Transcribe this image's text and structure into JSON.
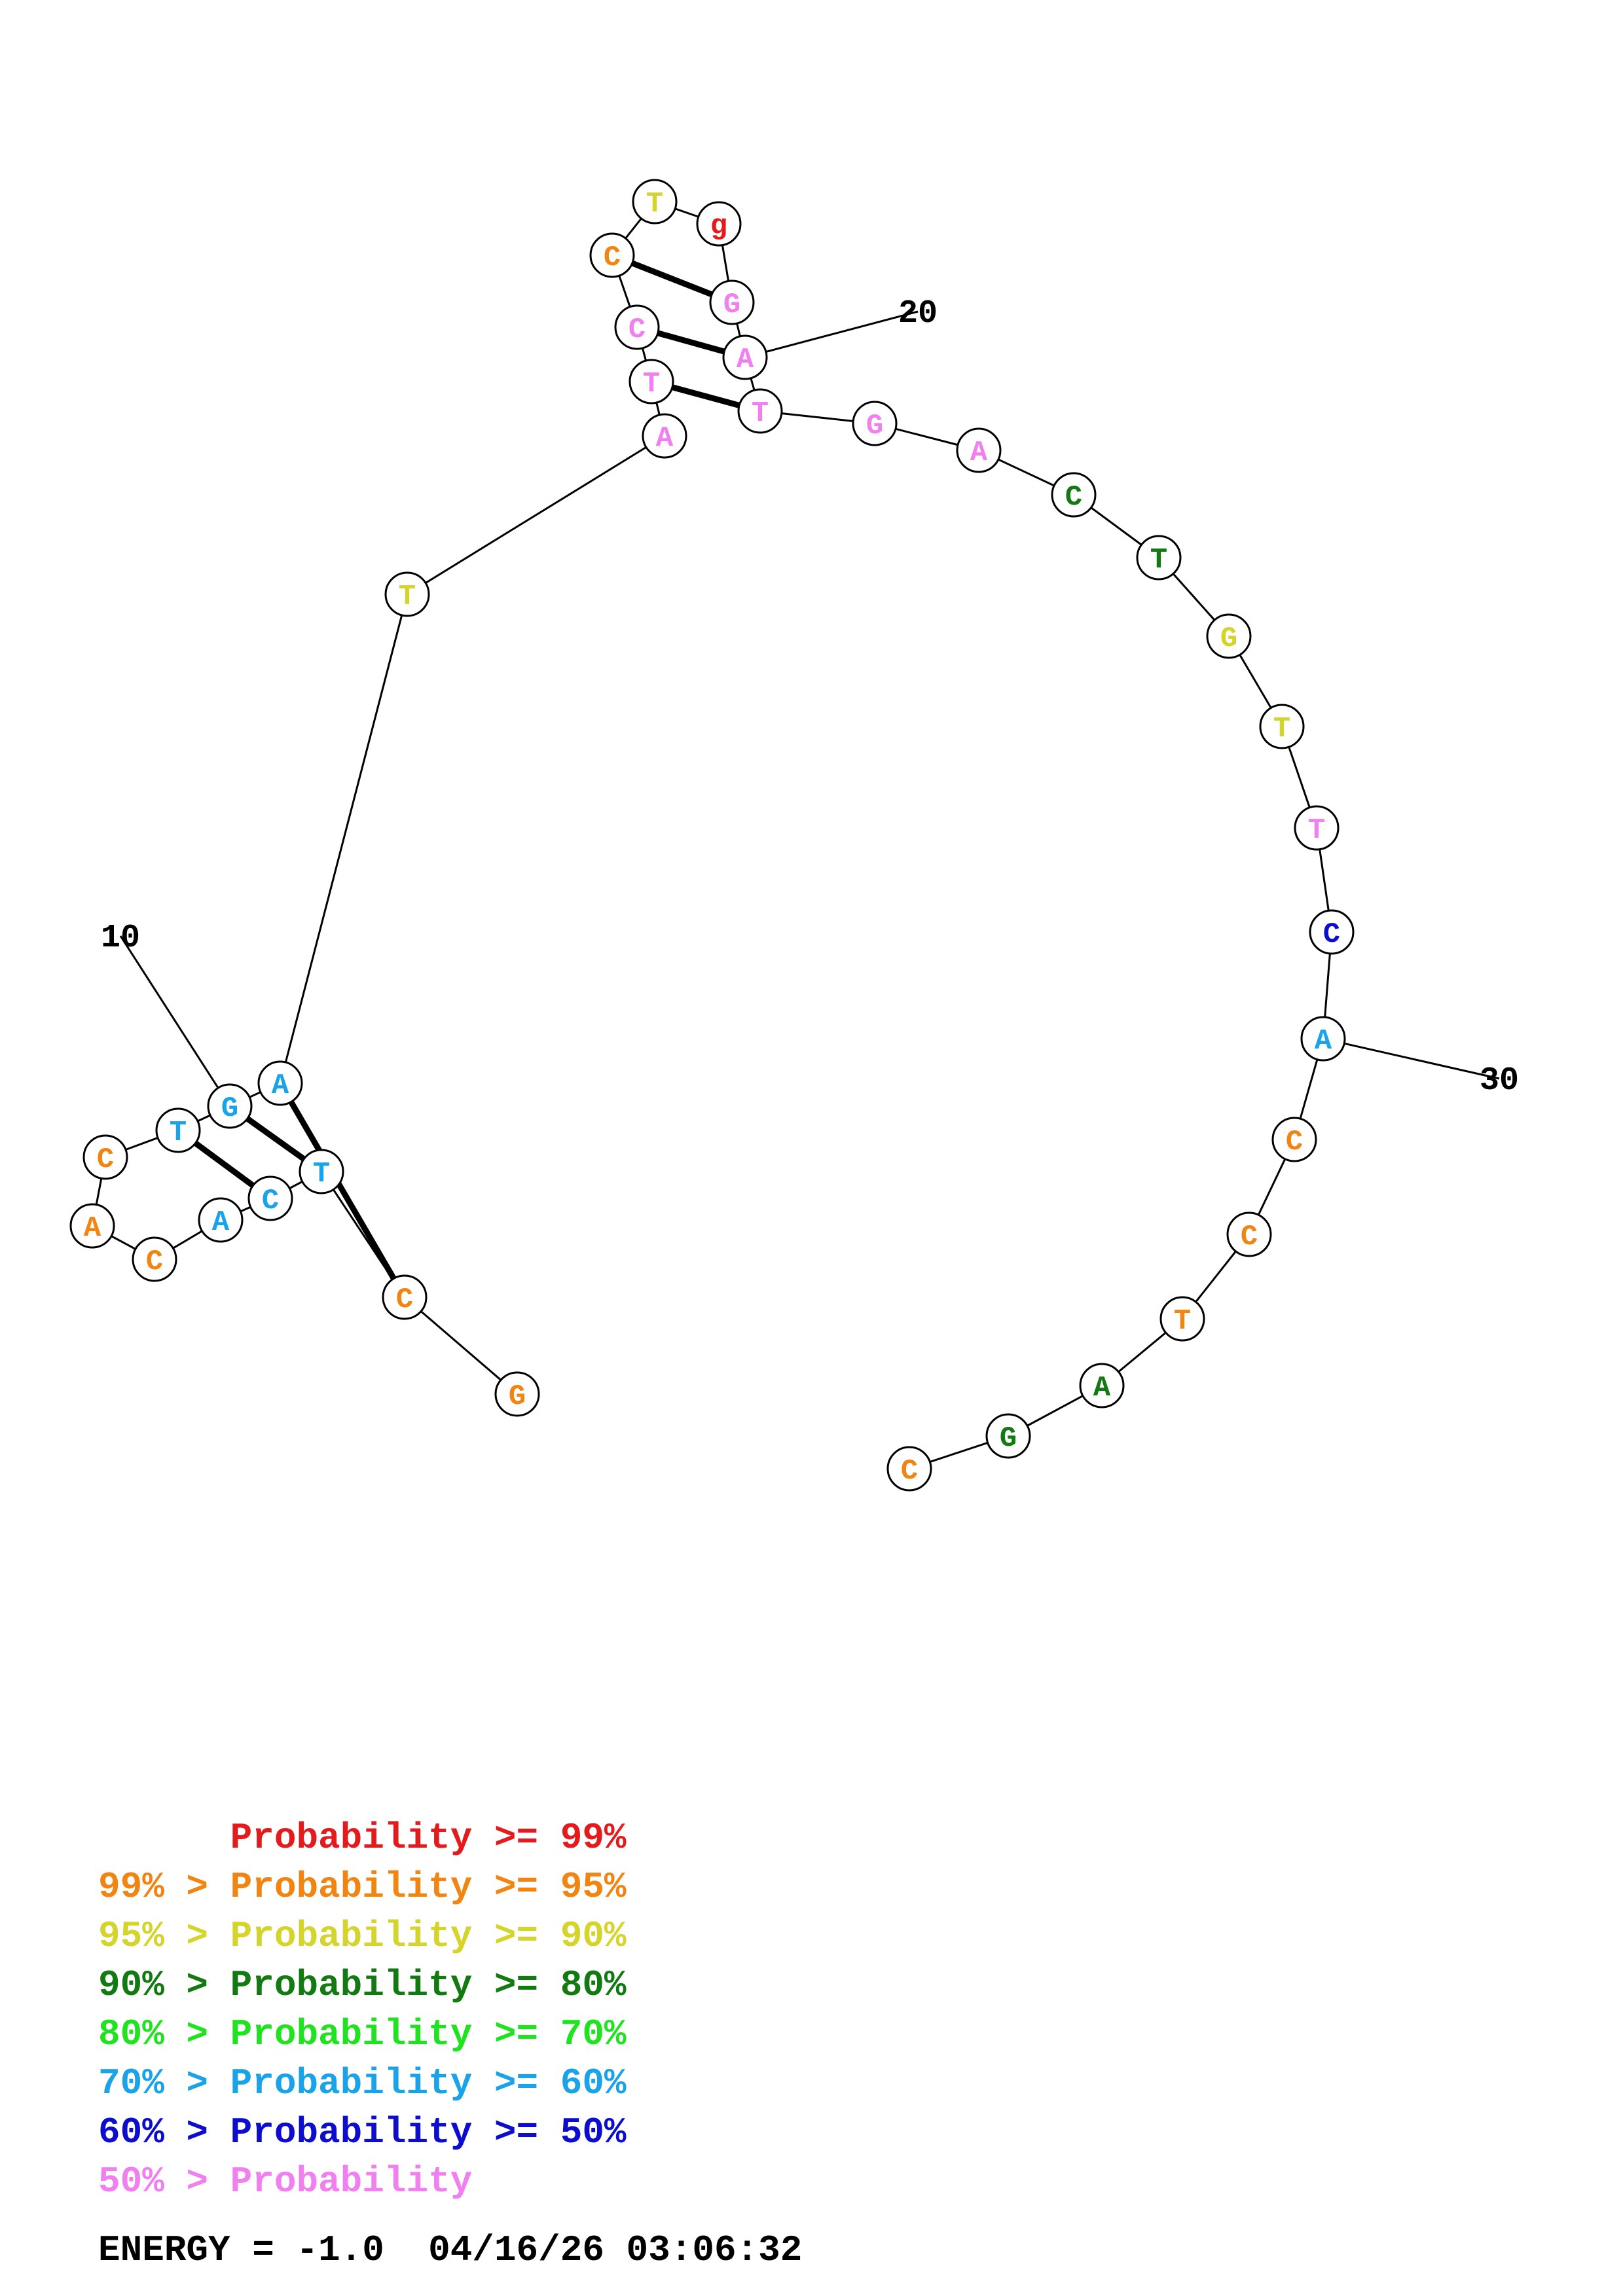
{
  "structure": {
    "nucleotides": [
      {
        "n": 1,
        "base": "G",
        "cls": "c95"
      },
      {
        "n": 2,
        "base": "C",
        "cls": "c95"
      },
      {
        "n": 3,
        "base": "T",
        "cls": "c60"
      },
      {
        "n": 4,
        "base": "C",
        "cls": "c60"
      },
      {
        "n": 5,
        "base": "A",
        "cls": "c60"
      },
      {
        "n": 6,
        "base": "C",
        "cls": "c95"
      },
      {
        "n": 7,
        "base": "A",
        "cls": "c95"
      },
      {
        "n": 8,
        "base": "C",
        "cls": "c95"
      },
      {
        "n": 9,
        "base": "T",
        "cls": "c60"
      },
      {
        "n": 10,
        "base": "G",
        "cls": "c60"
      },
      {
        "n": 11,
        "base": "A",
        "cls": "c60"
      },
      {
        "n": 12,
        "base": "T",
        "cls": "c90"
      },
      {
        "n": 13,
        "base": "A",
        "cls": "clow"
      },
      {
        "n": 14,
        "base": "T",
        "cls": "clow"
      },
      {
        "n": 15,
        "base": "C",
        "cls": "clow"
      },
      {
        "n": 16,
        "base": "C",
        "cls": "c95"
      },
      {
        "n": 17,
        "base": "T",
        "cls": "c90"
      },
      {
        "n": 18,
        "base": "g",
        "cls": "c99"
      },
      {
        "n": 19,
        "base": "G",
        "cls": "clow"
      },
      {
        "n": 20,
        "base": "A",
        "cls": "clow"
      },
      {
        "n": 21,
        "base": "T",
        "cls": "clow"
      },
      {
        "n": 22,
        "base": "G",
        "cls": "clow"
      },
      {
        "n": 23,
        "base": "A",
        "cls": "clow"
      },
      {
        "n": 24,
        "base": "C",
        "cls": "c80"
      },
      {
        "n": 25,
        "base": "T",
        "cls": "c80"
      },
      {
        "n": 26,
        "base": "G",
        "cls": "c90"
      },
      {
        "n": 27,
        "base": "T",
        "cls": "c90"
      },
      {
        "n": 28,
        "base": "T",
        "cls": "clow"
      },
      {
        "n": 29,
        "base": "C",
        "cls": "c50"
      },
      {
        "n": 30,
        "base": "A",
        "cls": "c60"
      },
      {
        "n": 31,
        "base": "C",
        "cls": "c95"
      },
      {
        "n": 32,
        "base": "C",
        "cls": "c95"
      },
      {
        "n": 33,
        "base": "T",
        "cls": "c95"
      },
      {
        "n": 34,
        "base": "A",
        "cls": "c80"
      },
      {
        "n": 35,
        "base": "G",
        "cls": "c80"
      },
      {
        "n": 36,
        "base": "C",
        "cls": "c95"
      }
    ],
    "pairs": [
      [
        4,
        9
      ],
      [
        3,
        10
      ],
      [
        2,
        11
      ],
      [
        14,
        21
      ],
      [
        15,
        20
      ],
      [
        16,
        19
      ]
    ],
    "index_labels": [
      {
        "n": 10,
        "text": "10"
      },
      {
        "n": 20,
        "text": "20"
      },
      {
        "n": 30,
        "text": "30"
      }
    ]
  },
  "colors": {
    "c99": "#e41a1c",
    "c95": "#f28411",
    "c90": "#d4d42a",
    "c80": "#117a11",
    "c70": "#1ee31e",
    "c60": "#1aa3e8",
    "c50": "#0d0dcf",
    "clow": "#f07ff0"
  },
  "legend": [
    {
      "text": "      Probability >= 99%",
      "cls": "c99"
    },
    {
      "text": "99% > Probability >= 95%",
      "cls": "c95"
    },
    {
      "text": "95% > Probability >= 90%",
      "cls": "c90"
    },
    {
      "text": "90% > Probability >= 80%",
      "cls": "c80"
    },
    {
      "text": "80% > Probability >= 70%",
      "cls": "c70"
    },
    {
      "text": "70% > Probability >= 60%",
      "cls": "c60"
    },
    {
      "text": "60% > Probability >= 50%",
      "cls": "c50"
    },
    {
      "text": "50% > Probability",
      "cls": "clow"
    }
  ],
  "energy_label": "ENERGY = -1.0  04/16/26 03:06:32"
}
